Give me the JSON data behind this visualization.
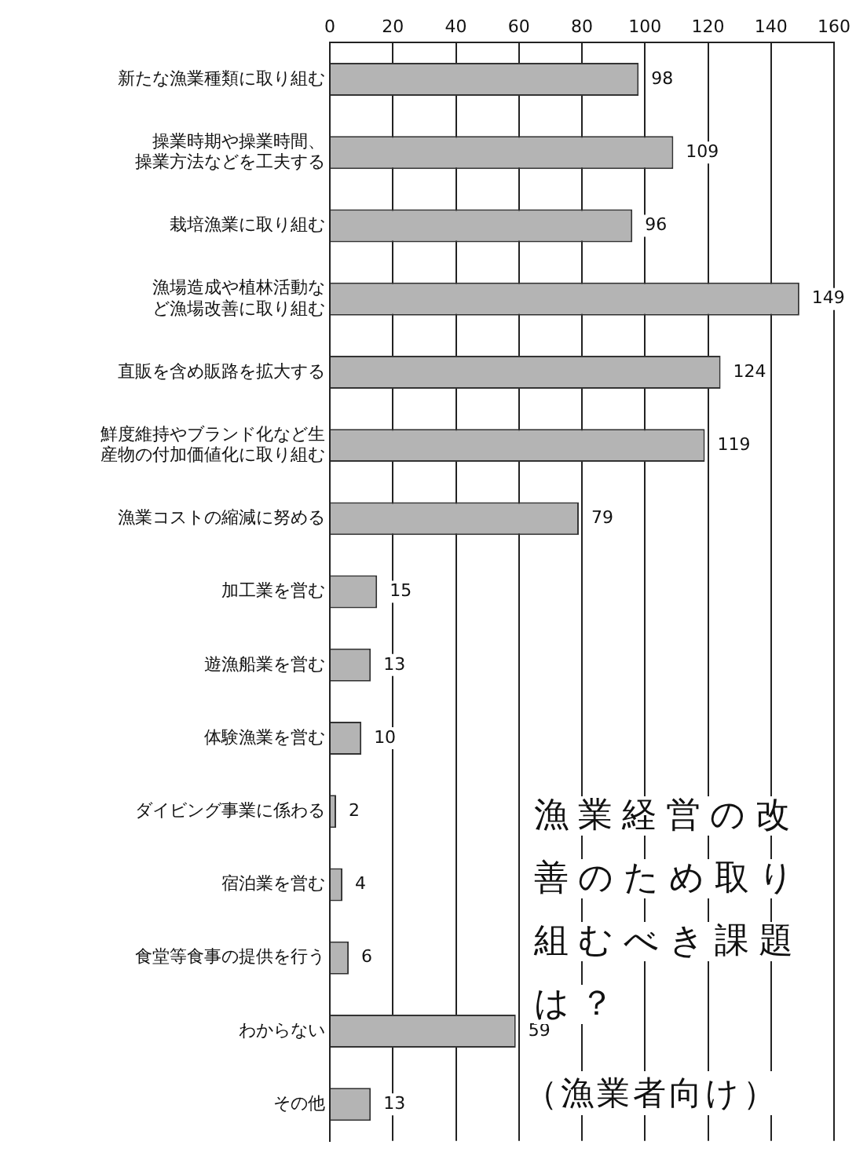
{
  "chart_data": {
    "type": "bar",
    "orientation": "horizontal",
    "title": "漁業経営の改善のため取り組むべき課題は？",
    "subtitle": "（漁業者向け）",
    "categories": [
      "新たな漁業種類に取り組む",
      "操業時期や操業時間、操業方法などを工夫する",
      "栽培漁業に取り組む",
      "漁場造成や植林活動など漁場改善に取り組む",
      "直販を含め販路を拡大する",
      "鮮度維持やブランド化など生産物の付加価値化に取り組む",
      "漁業コストの縮減に努める",
      "加工業を営む",
      "遊漁船業を営む",
      "体験漁業を営む",
      "ダイビング事業に係わる",
      "宿泊業を営む",
      "食堂等食事の提供を行う",
      "わからない",
      "その他"
    ],
    "values": [
      98,
      109,
      96,
      149,
      124,
      119,
      79,
      15,
      13,
      10,
      2,
      4,
      6,
      59,
      13
    ],
    "color": "#b4b4b4",
    "xlim": [
      0,
      160
    ],
    "xticks": [
      0,
      20,
      40,
      60,
      80,
      100,
      120,
      140,
      160
    ],
    "grid": "x",
    "data_labels": true
  }
}
